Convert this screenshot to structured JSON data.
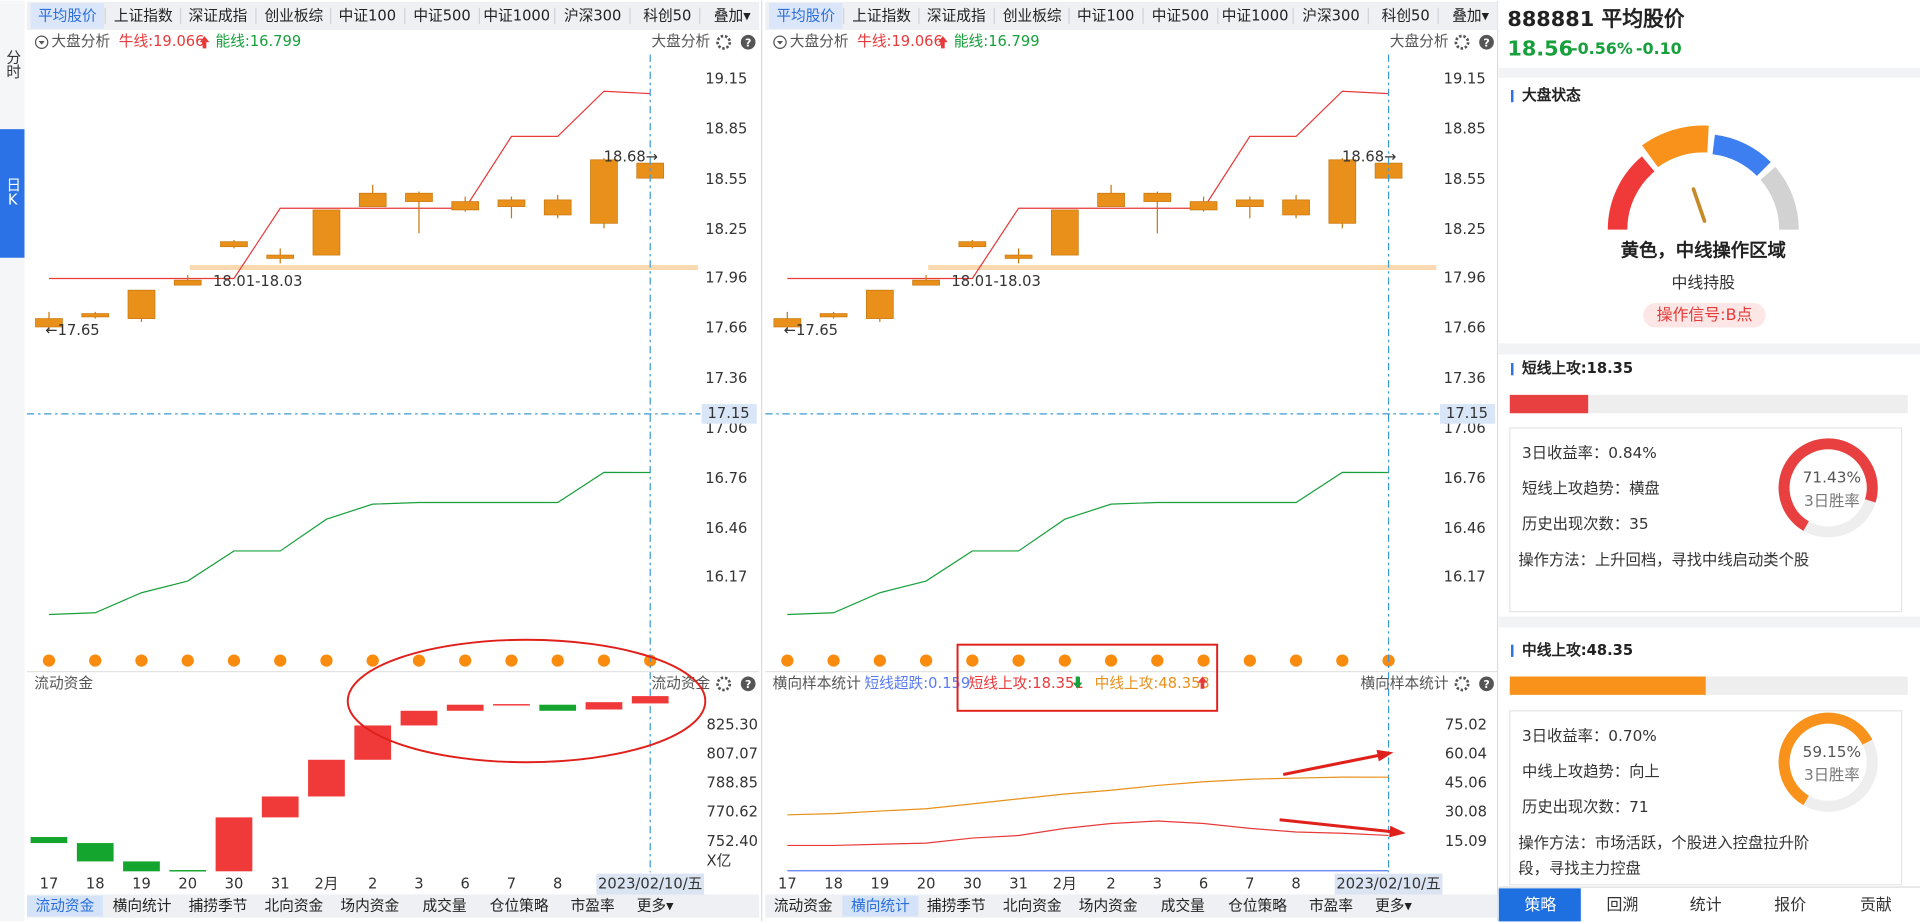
{
  "tabs": [
    "平均股价",
    "上证指数",
    "深证成指",
    "创业板综",
    "中证100",
    "中证500",
    "中证1000",
    "沪深300",
    "科创50",
    "叠加▾"
  ],
  "sidebar": {
    "time_share": "分时",
    "daily_k": "日K"
  },
  "header": {
    "analysis": "大盘分析",
    "bull": "牛线:19.066",
    "energy": "能线:16.799"
  },
  "price_axis": {
    "ylim": [
      15.74,
      19.3
    ],
    "yticks": [
      19.15,
      18.85,
      18.55,
      18.25,
      17.96,
      17.66,
      17.36,
      17.06,
      16.76,
      16.46,
      16.17
    ],
    "cursor": 17.15
  },
  "dates": [
    "17",
    "18",
    "19",
    "20",
    "30",
    "31",
    "2月",
    "2",
    "3",
    "6",
    "7",
    "8",
    null,
    "2023/02/10/五"
  ],
  "candles": [
    [
      17.67,
      17.72,
      17.76,
      17.65
    ],
    [
      17.73,
      17.75,
      17.76,
      17.72
    ],
    [
      17.72,
      17.89,
      17.89,
      17.7
    ],
    [
      17.92,
      17.95,
      17.98,
      17.92
    ],
    [
      18.15,
      18.18,
      18.19,
      18.14
    ],
    [
      18.08,
      18.1,
      18.14,
      18.05
    ],
    [
      18.1,
      18.37,
      18.37,
      18.1
    ],
    [
      18.39,
      18.47,
      18.52,
      18.39
    ],
    [
      18.42,
      18.47,
      18.48,
      18.23
    ],
    [
      18.37,
      18.42,
      18.45,
      18.36
    ],
    [
      18.39,
      18.43,
      18.45,
      18.32
    ],
    [
      18.34,
      18.43,
      18.46,
      18.32
    ],
    [
      18.29,
      18.67,
      18.68,
      18.26
    ],
    [
      18.56,
      18.65,
      18.65,
      18.56
    ]
  ],
  "bull_line": [
    17.96,
    17.96,
    17.96,
    17.96,
    17.96,
    18.38,
    18.38,
    18.38,
    18.38,
    18.38,
    18.81,
    18.81,
    19.08,
    19.066
  ],
  "energy_line": [
    15.95,
    15.96,
    16.08,
    16.15,
    16.33,
    16.33,
    16.52,
    16.61,
    16.62,
    16.62,
    16.62,
    16.62,
    16.8,
    16.799
  ],
  "annotations": {
    "high": "18.68→",
    "band": "18.01-18.03",
    "low": "←17.65"
  },
  "panels": [
    {
      "sub_title": "流动资金"
    },
    {
      "sub_title": "横向样本统计"
    }
  ],
  "fund": {
    "ylim": [
      733.2,
      846.0
    ],
    "yticks": [
      {
        "value": 825.3,
        "label": "825.30"
      },
      807.07,
      788.85,
      770.62,
      {
        "value": 752.4,
        "label": "752.40"
      }
    ],
    "unit": "X亿",
    "bars": [
      [
        755.4,
        751.6
      ],
      [
        751.6,
        740.1
      ],
      [
        740.1,
        733.9
      ],
      [
        734.7,
        733.9
      ],
      [
        733.9,
        767.7
      ],
      [
        767.7,
        780.8
      ],
      [
        780.8,
        803.8
      ],
      [
        803.8,
        825.3
      ],
      [
        825.3,
        834.5
      ],
      [
        834.5,
        838.3
      ],
      [
        838.3,
        838.7
      ],
      [
        838.3,
        834.5
      ],
      [
        835.3,
        839.9
      ],
      [
        839.1,
        843.7
      ]
    ]
  },
  "sample": {
    "ylim": [
      -0.7,
      92.0
    ],
    "yticks": [
      75.02,
      60.04,
      45.06,
      30.08,
      15.09
    ],
    "series": [
      {
        "name": "短线超跌:0.159",
        "color": "#5b7cf0",
        "values": [
          0.16,
          0.16,
          0.16,
          0.16,
          0.16,
          0.16,
          0.16,
          0.16,
          0.16,
          0.16,
          0.16,
          0.16,
          0.16,
          0.159
        ]
      },
      {
        "name": "短线上攻:18.351",
        "color": "#e83a3a",
        "values": [
          13.2,
          13.2,
          13.8,
          14.4,
          17.0,
          18.3,
          22.0,
          24.5,
          25.8,
          24.5,
          22.0,
          20.1,
          19.5,
          18.351
        ]
      },
      {
        "name": "中线上攻:48.353",
        "color": "#e8901a",
        "values": [
          28.97,
          29.6,
          30.9,
          32.1,
          34.6,
          37.2,
          39.7,
          41.6,
          44.1,
          46.0,
          47.3,
          47.9,
          48.4,
          48.353
        ]
      }
    ]
  },
  "bottom_tabs": [
    "流动资金",
    "横向统计",
    "捕捞季节",
    "北向资金",
    "场内资金",
    "成交量",
    "仓位策略",
    "市盈率",
    "更多▾"
  ],
  "side": {
    "title": "888881 平均股价",
    "price": "18.56",
    "change_pct": "-0.56%",
    "change": "-0.10",
    "status_title": "大盘状态",
    "status": "黄色，中线操作区域",
    "hold": "中线持股",
    "signal": "操作信号:B点",
    "short": {
      "title": "短线上攻:18.35",
      "ret": "3日收益率：0.84%",
      "trend": "短线上攻趋势：横盘",
      "count": "历史出现次数：35",
      "method": "操作方法：上升回档，寻找中线启动类个股",
      "win_rate": {
        "value": 71.43,
        "label": "71.43%"
      },
      "win_label": "3日胜率"
    },
    "mid": {
      "title": "中线上攻:48.35",
      "ret": "3日收益率：0.70%",
      "trend": "中线上攻趋势：向上",
      "count": "历史出现次数：71",
      "method": "操作方法：市场活跃，个股进入控盘拉升阶段，寻找主力控盘",
      "win_rate": {
        "value": 59.15,
        "label": "59.15%"
      },
      "win_label": "3日胜率"
    },
    "tabs": [
      "策略",
      "回溯",
      "统计",
      "报价",
      "贡献"
    ]
  }
}
